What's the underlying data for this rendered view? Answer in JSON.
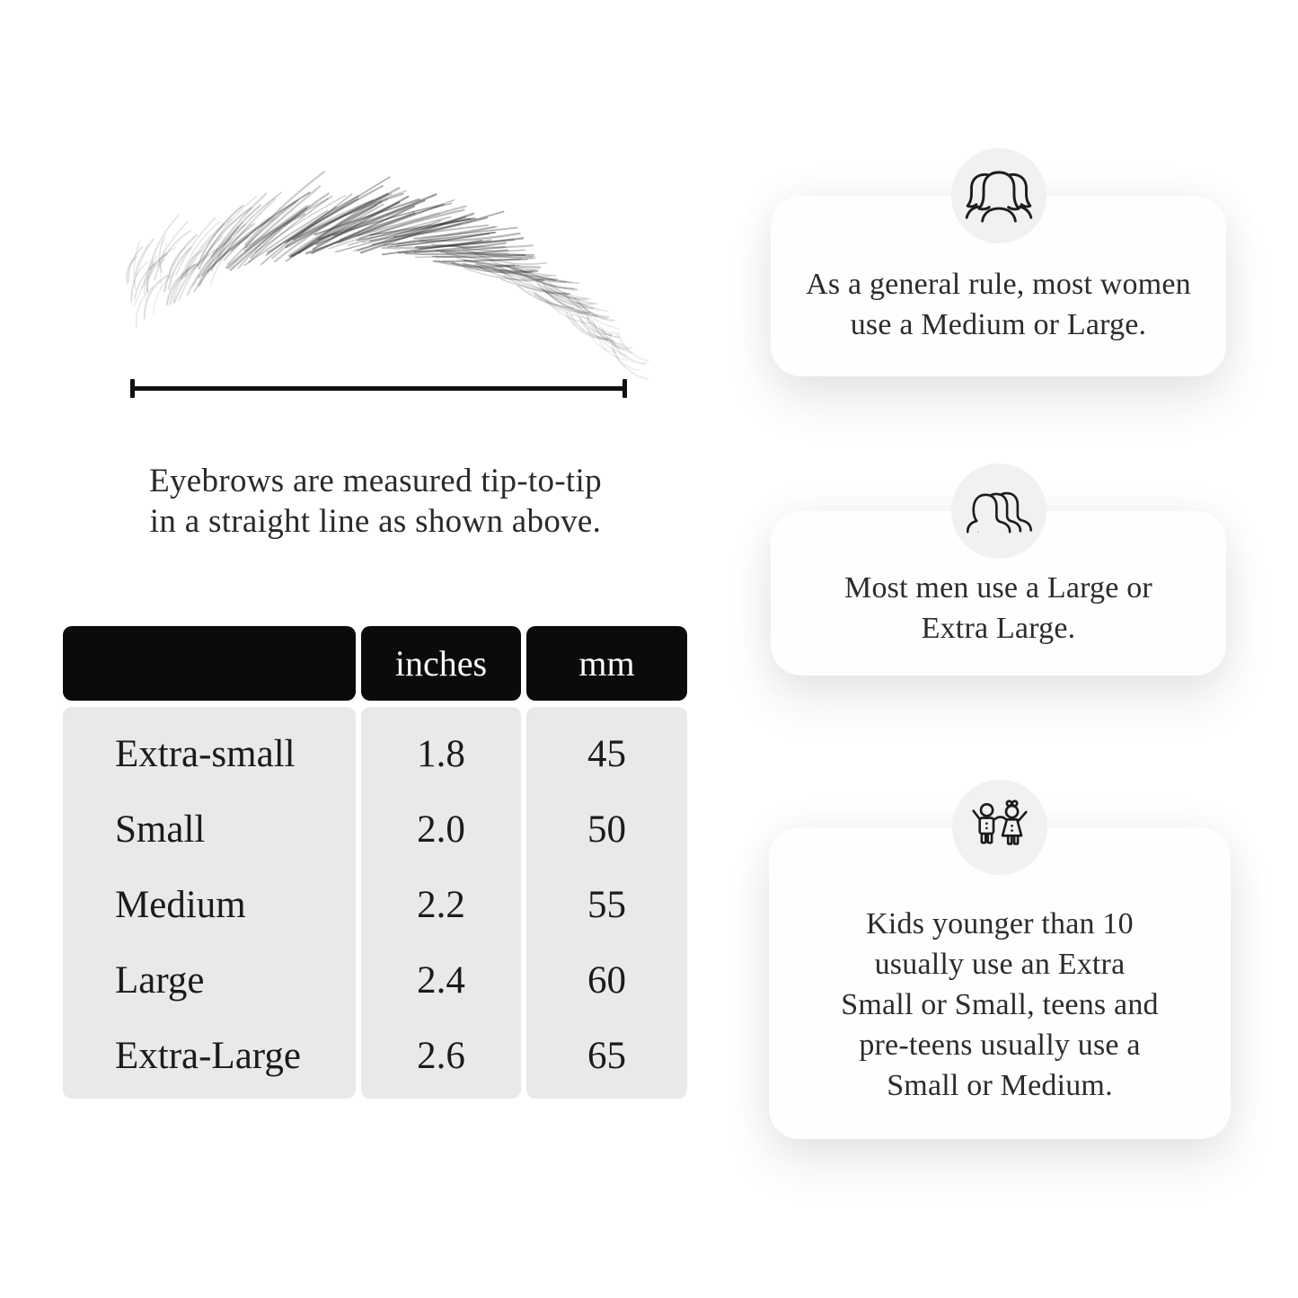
{
  "figure": {
    "caption_line1": "Eyebrows are measured tip-to-tip",
    "caption_line2": "in a straight line as shown above."
  },
  "size_table": {
    "headers": [
      "",
      "inches",
      "mm"
    ],
    "rows": [
      {
        "label": "Extra-small",
        "inches": "1.8",
        "mm": "45"
      },
      {
        "label": "Small",
        "inches": "2.0",
        "mm": "50"
      },
      {
        "label": "Medium",
        "inches": "2.2",
        "mm": "55"
      },
      {
        "label": "Large",
        "inches": "2.4",
        "mm": "60"
      },
      {
        "label": "Extra-Large",
        "inches": "2.6",
        "mm": "65"
      }
    ]
  },
  "cards": [
    {
      "icon": "women-group-icon",
      "lines": [
        "As a general rule, most women",
        "use a Medium or Large."
      ]
    },
    {
      "icon": "men-group-icon",
      "lines": [
        "Most men use a Large or",
        "Extra Large."
      ]
    },
    {
      "icon": "kids-icon",
      "lines": [
        "Kids younger than 10",
        "usually use an Extra",
        "Small or Small, teens and",
        "pre-teens usually use a",
        "Small or Medium."
      ]
    }
  ],
  "colors": {
    "table_header_bg": "#0b0b0b",
    "table_header_text": "#fbfbfb",
    "table_body_bg": "#e9e9e9",
    "card_bg": "#fefefe",
    "icon_circle_bg": "#f1f1f1",
    "text": "#2c2c2c",
    "line": "#111111"
  }
}
